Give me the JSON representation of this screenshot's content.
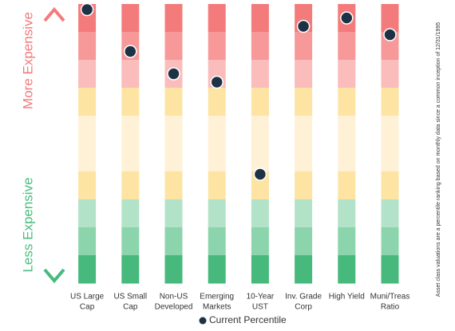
{
  "chart_data": {
    "type": "percentile-dot",
    "categories": [
      [
        "US Large",
        "Cap"
      ],
      [
        "US Small",
        "Cap"
      ],
      [
        "Non-US",
        "Developed"
      ],
      [
        "Emerging",
        "Markets"
      ],
      [
        "10-Year",
        "UST"
      ],
      [
        "Inv. Grade",
        "Corp"
      ],
      [
        "High Yield"
      ],
      [
        "Muni/Treas",
        "Ratio"
      ]
    ],
    "series": [
      {
        "name": "Current Percentile",
        "color": "#1e3245",
        "values": [
          98,
          83,
          75,
          72,
          39,
          92,
          95,
          89
        ]
      }
    ],
    "ylim": [
      0,
      100
    ],
    "band_colors": [
      "#f47b7b",
      "#f79999",
      "#fbbcbc",
      "#fde4a3",
      "#fef1d6",
      "#fef1d6",
      "#fde4a3",
      "#b2e3c8",
      "#8cd5ac",
      "#47b97c"
    ],
    "annotations": {
      "top": "More Expensive",
      "bottom": "Less Expensive",
      "top_color": "#f07b7b",
      "bottom_color": "#4bbd7f"
    },
    "note": "Asset class valuations are a percentile ranking based on monthly data since a common inception of 12/31/1995"
  }
}
